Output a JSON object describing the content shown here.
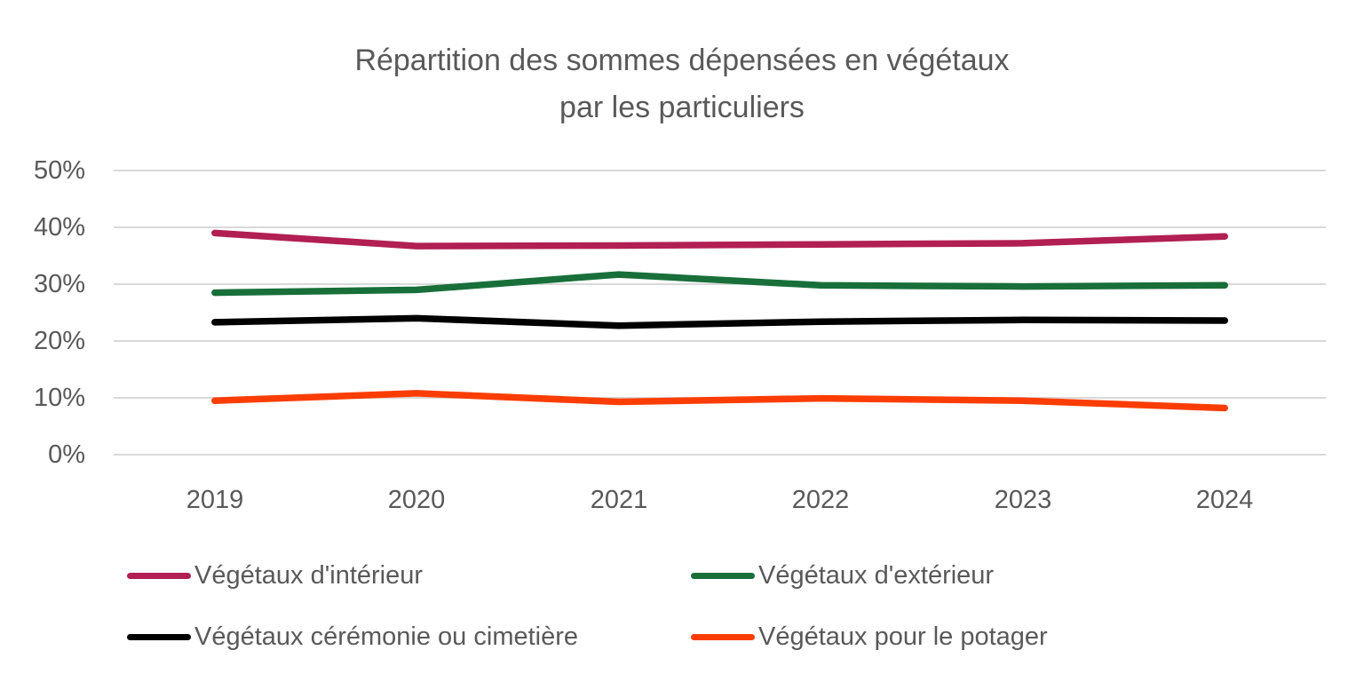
{
  "title": "Répartition des sommes dépensées en végétaux par les particuliers",
  "colors": {
    "text": "#595959",
    "gridline": "#D9D9D9",
    "background": "#FFFFFF"
  },
  "chart_data": {
    "type": "line",
    "title": "Répartition des sommes dépensées en végétaux par les particuliers",
    "xlabel": "",
    "ylabel": "",
    "x_labels": [
      "2019",
      "2020",
      "2021",
      "2022",
      "2023",
      "2024"
    ],
    "ytick_labels": [
      "50%",
      "40%",
      "30%",
      "20%",
      "10%",
      "0%"
    ],
    "ytick_values": [
      50,
      40,
      30,
      20,
      10,
      0
    ],
    "ylim": [
      0,
      50
    ],
    "grid": "horizontal",
    "legend_position": "bottom",
    "series": [
      {
        "name": "Végétaux d'intérieur",
        "color": "#B11F53",
        "values": [
          39.0,
          36.7,
          36.8,
          37.0,
          37.2,
          38.4
        ]
      },
      {
        "name": "Végétaux d'extérieur",
        "color": "#186F3A",
        "values": [
          28.5,
          29.0,
          31.7,
          29.8,
          29.6,
          29.8
        ]
      },
      {
        "name": "Végétaux cérémonie ou cimetière",
        "color": "#000000",
        "values": [
          23.3,
          24.0,
          22.7,
          23.4,
          23.7,
          23.6
        ]
      },
      {
        "name": "Végétaux pour le potager",
        "color": "#FC3D03",
        "values": [
          9.5,
          10.8,
          9.3,
          9.9,
          9.5,
          8.2
        ]
      }
    ]
  }
}
